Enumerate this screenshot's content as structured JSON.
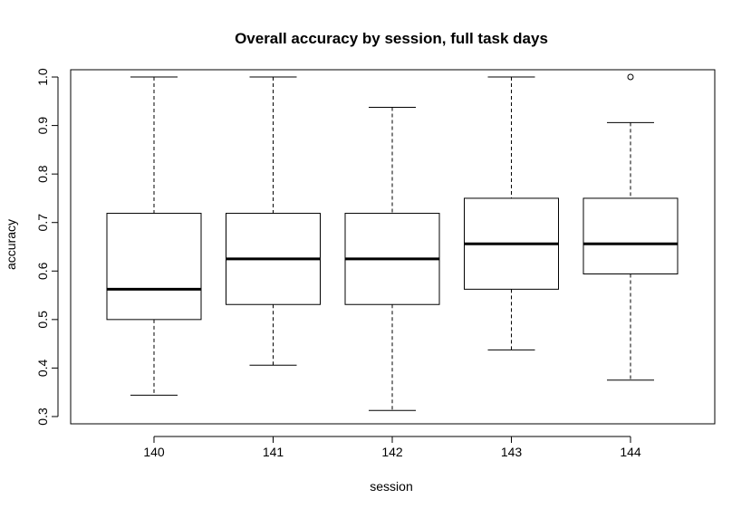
{
  "chart_data": {
    "type": "boxplot",
    "title": "Overall accuracy by session, full task days",
    "xlabel": "session",
    "ylabel": "accuracy",
    "ylim": [
      0.285,
      1.015
    ],
    "yticks": [
      0.3,
      0.4,
      0.5,
      0.6,
      0.7,
      0.8,
      0.9,
      1.0
    ],
    "ytick_labels": [
      "0.3",
      "0.4",
      "0.5",
      "0.6",
      "0.7",
      "0.8",
      "0.9",
      "1.0"
    ],
    "grid": false,
    "legend": false,
    "categories": [
      "140",
      "141",
      "142",
      "143",
      "144"
    ],
    "boxes": [
      {
        "category": "140",
        "whisker_low": 0.344,
        "q1": 0.5,
        "median": 0.5625,
        "q3": 0.719,
        "whisker_high": 1.0,
        "outliers": []
      },
      {
        "category": "141",
        "whisker_low": 0.406,
        "q1": 0.531,
        "median": 0.625,
        "q3": 0.719,
        "whisker_high": 1.0,
        "outliers": []
      },
      {
        "category": "142",
        "whisker_low": 0.3125,
        "q1": 0.531,
        "median": 0.625,
        "q3": 0.719,
        "whisker_high": 0.9375,
        "outliers": []
      },
      {
        "category": "143",
        "whisker_low": 0.4375,
        "q1": 0.5625,
        "median": 0.656,
        "q3": 0.75,
        "whisker_high": 1.0,
        "outliers": []
      },
      {
        "category": "144",
        "whisker_low": 0.375,
        "q1": 0.594,
        "median": 0.656,
        "q3": 0.75,
        "whisker_high": 0.906,
        "outliers": [
          1.0
        ]
      }
    ]
  }
}
